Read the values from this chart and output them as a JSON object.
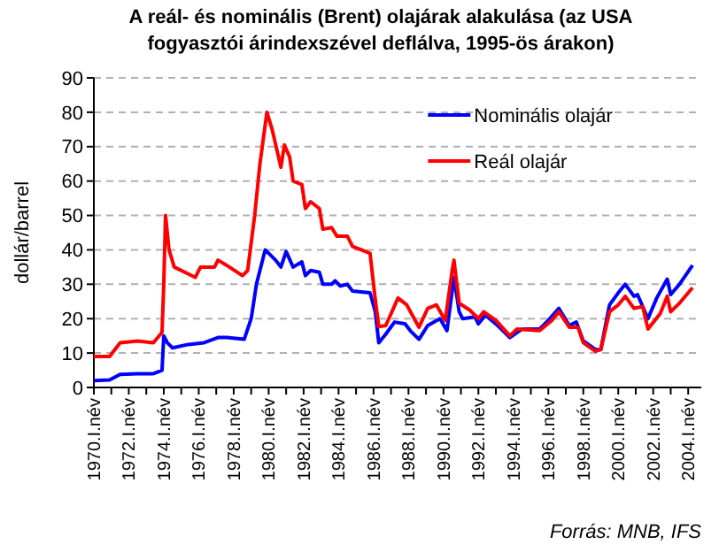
{
  "chart_data": {
    "type": "line",
    "title": "A reál- és nominális (Brent) olajárak alakulása (az USA fogyasztói árindexszével deflálva, 1995-ös árakon)",
    "ylabel": "dollár/barrel",
    "annotations": [
      "Forrás: MNB, IFS"
    ],
    "xlim": [
      1970,
      2004.75
    ],
    "ylim": [
      0,
      90
    ],
    "yticks": [
      0,
      10,
      20,
      30,
      40,
      50,
      60,
      70,
      80,
      90
    ],
    "xticks": [
      {
        "value": 1970,
        "label": "1970.I.név"
      },
      {
        "value": 1971,
        "label": null
      },
      {
        "value": 1972,
        "label": "1972.I.név"
      },
      {
        "value": 1973,
        "label": null
      },
      {
        "value": 1974,
        "label": "1974.I.név"
      },
      {
        "value": 1975,
        "label": null
      },
      {
        "value": 1976,
        "label": "1976.I.név"
      },
      {
        "value": 1977,
        "label": null
      },
      {
        "value": 1978,
        "label": "1978.I.név"
      },
      {
        "value": 1979,
        "label": null
      },
      {
        "value": 1980,
        "label": "1980.I.név"
      },
      {
        "value": 1981,
        "label": null
      },
      {
        "value": 1982,
        "label": "1982.I.név"
      },
      {
        "value": 1983,
        "label": null
      },
      {
        "value": 1984,
        "label": "1984.I.név"
      },
      {
        "value": 1985,
        "label": null
      },
      {
        "value": 1986,
        "label": "1986.I.név"
      },
      {
        "value": 1987,
        "label": null
      },
      {
        "value": 1988,
        "label": "1988.I.név"
      },
      {
        "value": 1989,
        "label": null
      },
      {
        "value": 1990,
        "label": "1990.I.név"
      },
      {
        "value": 1991,
        "label": null
      },
      {
        "value": 1992,
        "label": "1992.I.név"
      },
      {
        "value": 1993,
        "label": null
      },
      {
        "value": 1994,
        "label": "1994.I.név"
      },
      {
        "value": 1995,
        "label": null
      },
      {
        "value": 1996,
        "label": "1996.I.név"
      },
      {
        "value": 1997,
        "label": null
      },
      {
        "value": 1998,
        "label": "1998.I.név"
      },
      {
        "value": 1999,
        "label": null
      },
      {
        "value": 2000,
        "label": "2000.I.név"
      },
      {
        "value": 2001,
        "label": null
      },
      {
        "value": 2002,
        "label": "2002.I.név"
      },
      {
        "value": 2003,
        "label": null
      },
      {
        "value": 2004,
        "label": "2004.I.név"
      }
    ],
    "grid": "y",
    "legend": "top right",
    "line_style": "solid",
    "marker": "none",
    "series": [
      {
        "name": "Nominális olajár",
        "color": "#0000ff",
        "x": [
          1970,
          1970.9,
          1971.5,
          1972.5,
          1973.4,
          1973.9,
          1974.0,
          1974.2,
          1974.5,
          1975.4,
          1976.3,
          1977.1,
          1977.6,
          1978.6,
          1979.0,
          1979.3,
          1979.8,
          1980.4,
          1980.7,
          1981.0,
          1981.4,
          1981.9,
          1982.1,
          1982.4,
          1982.9,
          1983.1,
          1983.6,
          1983.8,
          1984.1,
          1984.5,
          1984.8,
          1985.8,
          1986.1,
          1986.3,
          1986.7,
          1987.2,
          1987.8,
          1988.1,
          1988.6,
          1989.1,
          1989.8,
          1990.2,
          1990.6,
          1990.9,
          1991.1,
          1991.8,
          1992.0,
          1992.4,
          1993.1,
          1993.8,
          1994.5,
          1995.5,
          1996.0,
          1996.6,
          1997.2,
          1997.6,
          1998.0,
          1998.7,
          1999.0,
          1999.5,
          2000.0,
          2000.4,
          2000.9,
          2001.1,
          2001.7,
          2002.2,
          2002.8,
          2003.0,
          2003.5,
          2004.25
        ],
        "values": [
          2,
          2.2,
          3.8,
          4,
          4,
          5,
          15,
          13,
          11.5,
          12.5,
          13,
          14.5,
          14.5,
          14,
          20,
          30,
          40,
          37,
          35,
          39.5,
          35,
          36.5,
          32.5,
          34,
          33.5,
          30,
          30,
          31,
          29.5,
          30,
          28,
          27.5,
          22,
          13,
          15.5,
          19,
          18.5,
          16.5,
          14,
          18,
          20,
          16.5,
          32,
          22,
          20,
          20.5,
          18.5,
          21,
          18,
          14.5,
          17,
          17,
          19.5,
          23,
          18,
          19,
          13.5,
          11,
          11,
          24,
          27.5,
          30,
          26.5,
          27,
          20,
          26,
          31.5,
          27,
          30,
          35.5
        ]
      },
      {
        "name": "Reál olajár",
        "color": "#ff0000",
        "x": [
          1970,
          1970.9,
          1971.5,
          1972.5,
          1973.4,
          1973.9,
          1974.0,
          1974.1,
          1974.3,
          1974.6,
          1975.8,
          1976.1,
          1976.9,
          1977.1,
          1977.6,
          1978.5,
          1978.8,
          1979.2,
          1979.5,
          1979.9,
          1980.2,
          1980.7,
          1980.9,
          1981.2,
          1981.4,
          1981.9,
          1982.1,
          1982.4,
          1982.9,
          1983.1,
          1983.6,
          1983.9,
          1984.5,
          1984.8,
          1985.3,
          1985.8,
          1986.1,
          1986.3,
          1986.7,
          1987.4,
          1987.9,
          1988.6,
          1989.1,
          1989.6,
          1990.1,
          1990.5,
          1990.6,
          1990.9,
          1991.5,
          1992.0,
          1992.3,
          1993.0,
          1993.8,
          1994.2,
          1995.5,
          1996.2,
          1996.6,
          1997.2,
          1997.7,
          1998.0,
          1998.7,
          1999.0,
          1999.5,
          2000.0,
          2000.4,
          2000.9,
          2001.4,
          2001.7,
          2002.4,
          2002.8,
          2003.0,
          2003.5,
          2004.25
        ],
        "values": [
          9,
          9,
          13,
          13.5,
          13,
          16,
          30,
          50,
          40,
          35,
          32,
          35,
          35,
          37,
          35.5,
          32.5,
          34,
          50,
          65,
          80,
          75,
          64,
          70.5,
          67,
          60,
          59,
          52,
          54,
          52,
          46,
          46.5,
          44,
          44,
          41,
          40,
          39,
          25.5,
          17.7,
          18,
          26,
          24,
          17.5,
          23,
          24,
          19.5,
          34,
          37,
          24.5,
          22.5,
          20,
          22,
          19.5,
          15,
          17,
          16.5,
          19.5,
          22,
          17.5,
          17.5,
          13,
          10.5,
          11,
          22,
          24,
          26.5,
          23,
          23.5,
          17,
          21.5,
          26.5,
          22,
          24.5,
          29
        ]
      }
    ]
  }
}
